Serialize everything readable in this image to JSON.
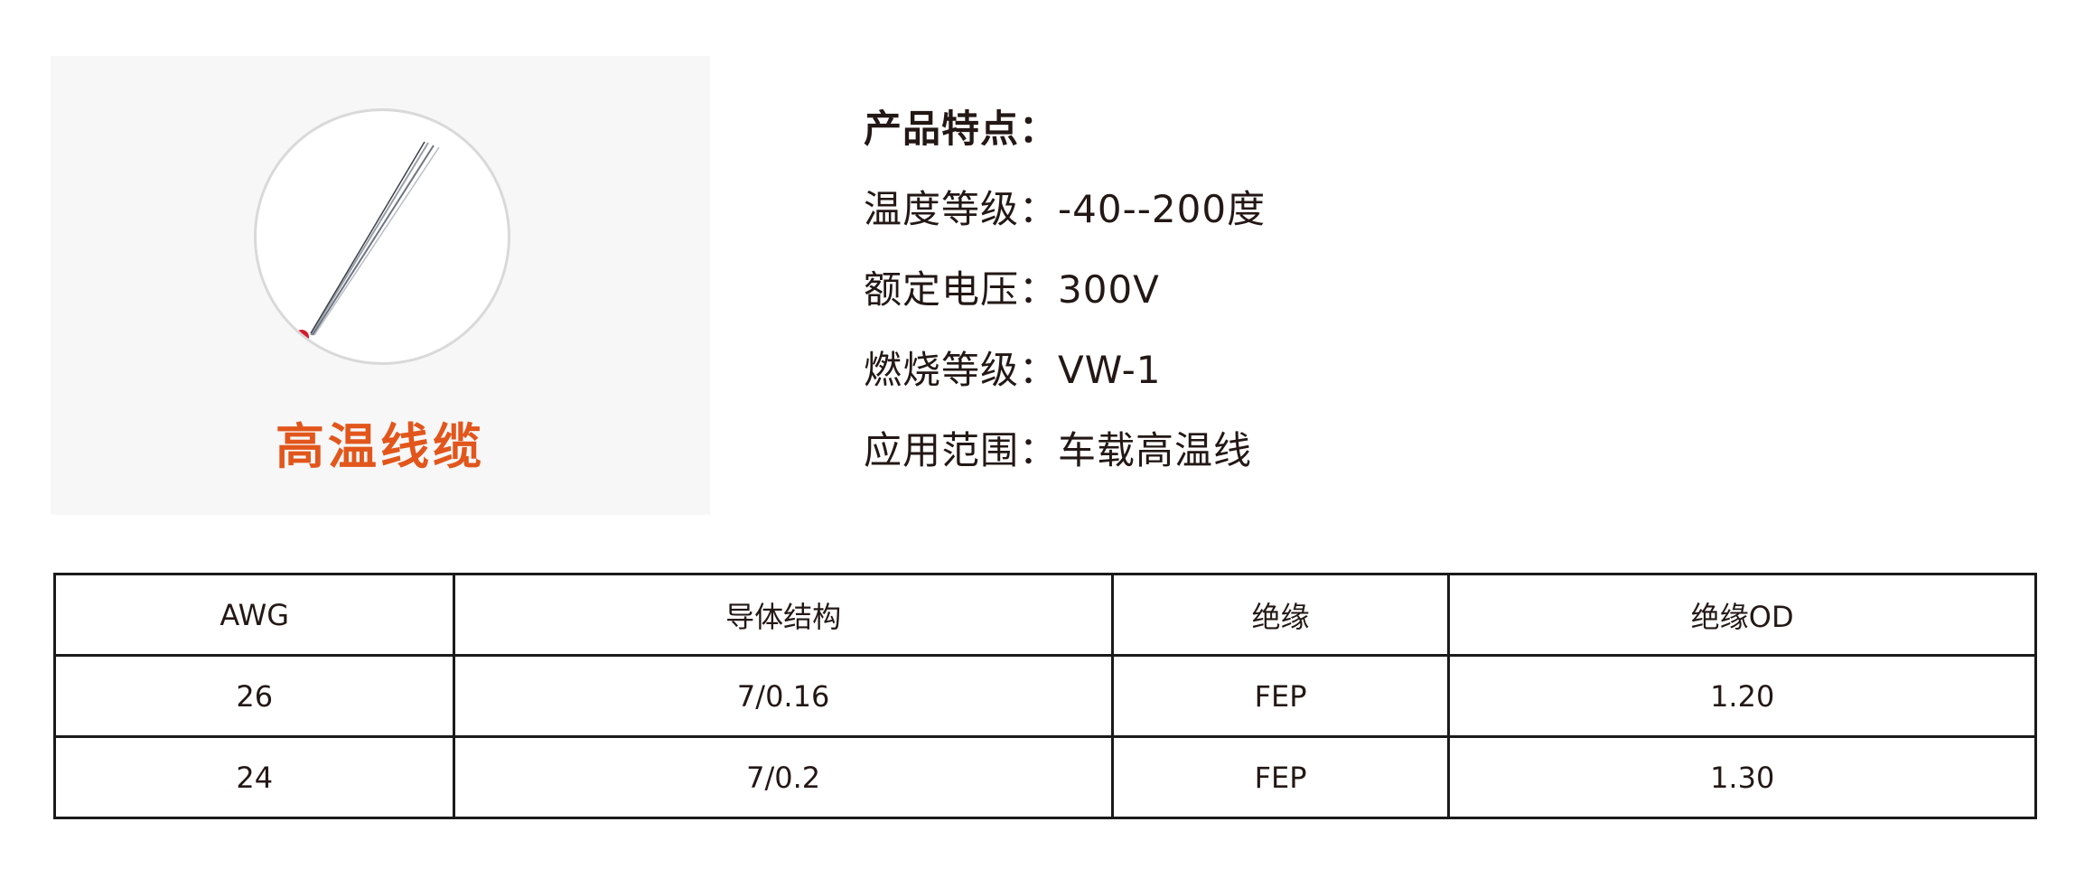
{
  "product": {
    "title": "高温线缆",
    "image_icon": "red-wire-strands-image",
    "accent_color": "#e2561c"
  },
  "features": {
    "heading": "产品特点：",
    "items": [
      {
        "label": "温度等级：",
        "value": "-40--200度"
      },
      {
        "label": "额定电压：",
        "value": "300V"
      },
      {
        "label": "燃烧等级：",
        "value": "VW-1"
      },
      {
        "label": "应用范围：",
        "value": "车载高温线"
      }
    ]
  },
  "table": {
    "headers": [
      "AWG",
      "导体结构",
      "绝缘",
      "绝缘OD"
    ],
    "rows": [
      [
        "26",
        "7/0.16",
        "FEP",
        "1.20"
      ],
      [
        "24",
        "7/0.2",
        "FEP",
        "1.30"
      ]
    ]
  }
}
